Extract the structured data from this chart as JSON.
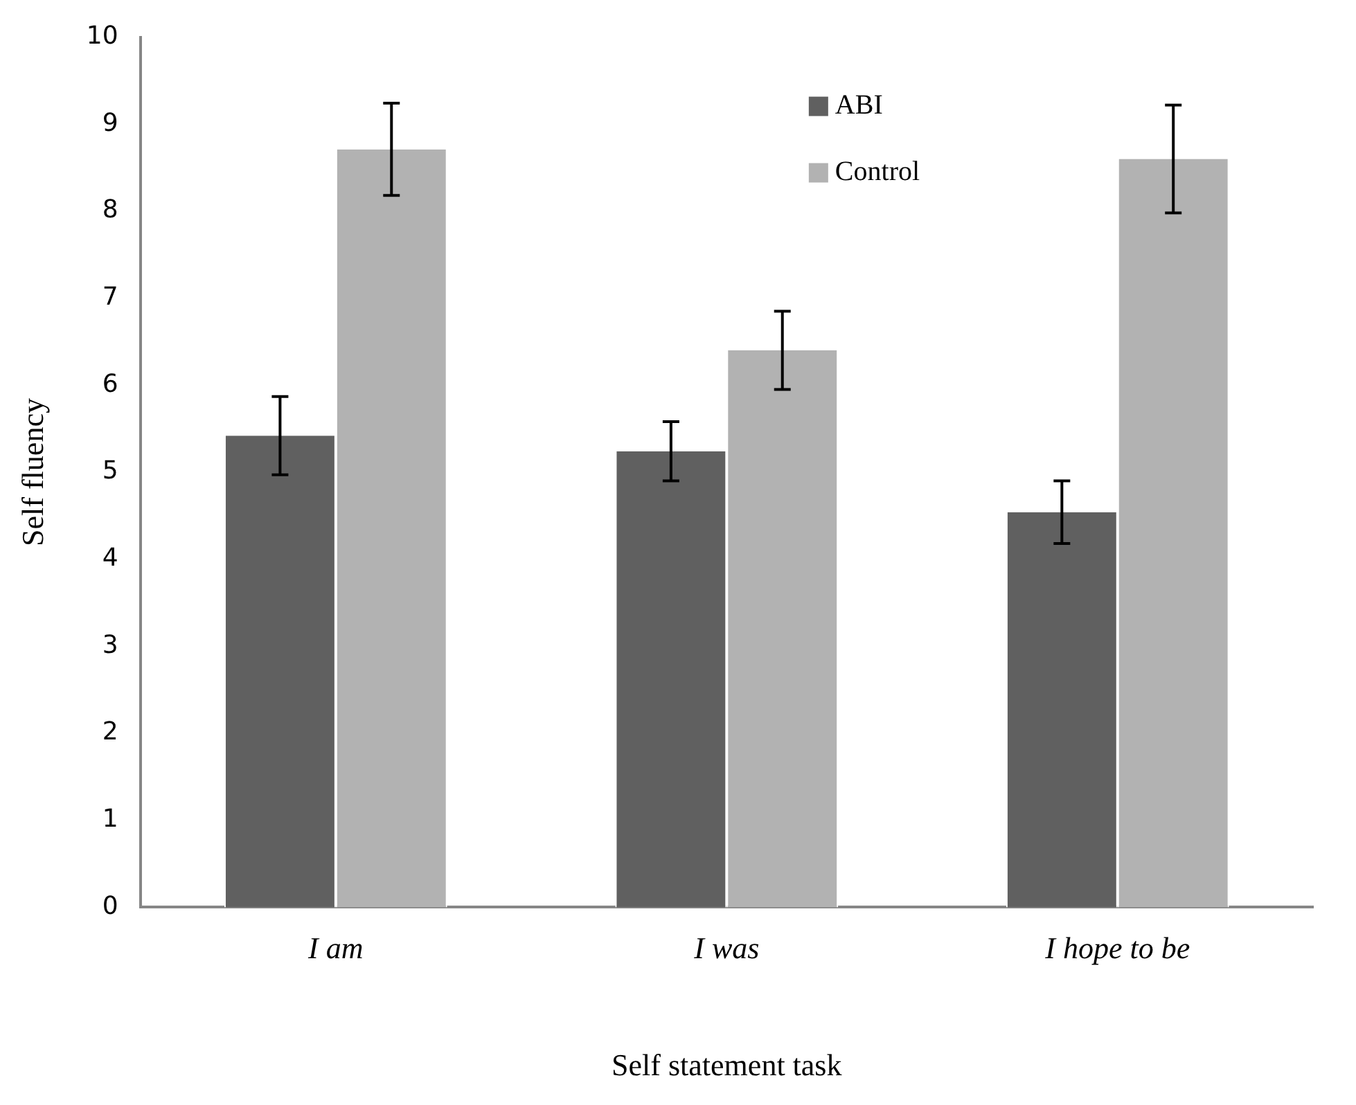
{
  "chart_data": {
    "type": "bar",
    "xlabel": "Self statement task",
    "ylabel": "Self fluency",
    "categories": [
      "I am",
      "I was",
      "I hope to be"
    ],
    "series": [
      {
        "name": "ABI",
        "color": "#606060",
        "values": [
          5.42,
          5.24,
          4.54
        ],
        "errors": [
          0.45,
          0.34,
          0.36
        ]
      },
      {
        "name": "Control",
        "color": "#b2b2b2",
        "values": [
          8.71,
          6.4,
          8.6
        ],
        "errors": [
          0.53,
          0.45,
          0.62
        ]
      }
    ],
    "ylim": [
      0,
      10
    ],
    "yticks": [
      0,
      1,
      2,
      3,
      4,
      5,
      6,
      7,
      8,
      9,
      10
    ],
    "grid": false,
    "legend": "top"
  }
}
